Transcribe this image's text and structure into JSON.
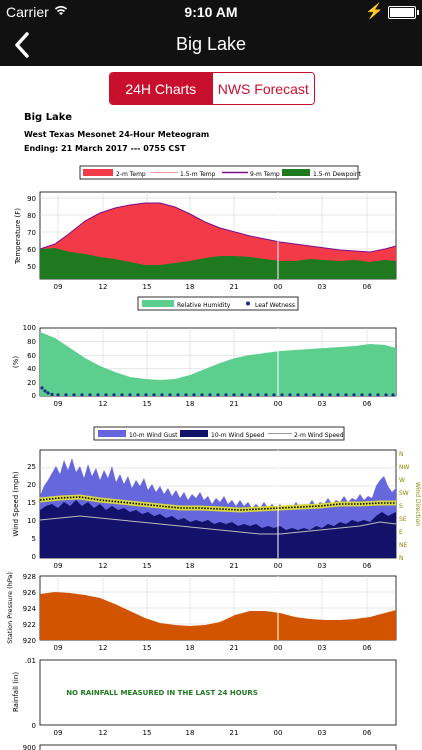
{
  "status_bar": {
    "carrier": "Carrier",
    "time": "9:10 AM"
  },
  "nav": {
    "title": "Big Lake",
    "back_icon": "chevron-left-icon"
  },
  "tabs": [
    {
      "label": "24H Charts",
      "selected": true
    },
    {
      "label": "NWS Forecast",
      "selected": false
    }
  ],
  "meteogram": {
    "station": "Big Lake",
    "subtitle": "West Texas Mesonet 24-Hour Meteogram",
    "ending": "Ending: 21 March 2017 --- 0755 CST",
    "time_ticks": [
      "09",
      "12",
      "15",
      "18",
      "21",
      "00",
      "03",
      "06"
    ],
    "temperature": {
      "legend": [
        "2-m Temp",
        "1.5-m Temp",
        "9-m Temp",
        "1.5-m Dewpoint"
      ],
      "ylabel": "Temperature (F)",
      "yticks": [
        "50",
        "60",
        "70",
        "80",
        "90"
      ],
      "colors": {
        "temp2m": "#f23a49",
        "temp9m": "#7a0f8a",
        "dewpoint": "#1f7a1f"
      }
    },
    "humidity": {
      "legend": [
        "Relative Humidity",
        "Leaf Wetness"
      ],
      "ylabel": "(%)",
      "yticks": [
        "0",
        "20",
        "40",
        "60",
        "80",
        "100"
      ],
      "colors": {
        "rh": "#5ccf8f",
        "leaf": "#1a2a8a"
      }
    },
    "wind": {
      "legend": [
        "10-m Wind Gust",
        "10-m Wind Speed",
        "2-m Wind Speed"
      ],
      "ylabel": "Wind Speed (mph)",
      "yticks": [
        "0",
        "5",
        "10",
        "15",
        "20",
        "25"
      ],
      "dir_label": "Wind Direction",
      "dir_ticks": [
        "N",
        "NW",
        "W",
        "SW",
        "S",
        "SE",
        "E",
        "NE",
        "N"
      ],
      "colors": {
        "gust": "#6666dd",
        "speed": "#12126a",
        "dir": "#d8d840"
      }
    },
    "pressure": {
      "ylabel": "Station Pressure (hPa)",
      "yticks": [
        "920",
        "922",
        "924",
        "926",
        "928"
      ],
      "color": "#d35400"
    },
    "rain": {
      "ylabel": "Rainfall (in)",
      "yticks": [
        "0",
        ".01"
      ],
      "message": "NO RAINFALL MEASURED IN THE LAST 24 HOURS"
    },
    "next_panel_tick": "900"
  }
}
